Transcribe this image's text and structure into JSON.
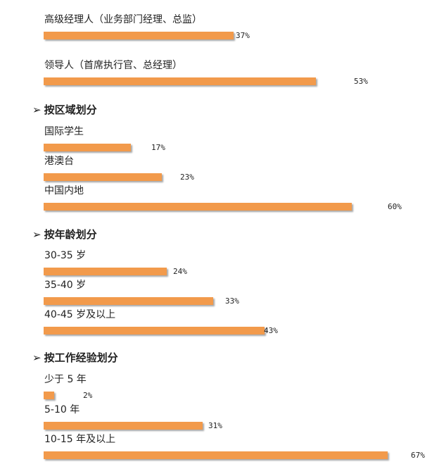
{
  "colors": {
    "bar": "#f29a4b"
  },
  "chart_data": [
    {
      "type": "bar",
      "heading": "",
      "categories": [
        "高级经理人（业务部门经理、总监）",
        "领导人（首席执行官、总经理）"
      ],
      "values": [
        37,
        53
      ],
      "value_labels": [
        "37%",
        "53%"
      ]
    },
    {
      "type": "bar",
      "heading": "按区域划分",
      "categories": [
        "国际学生",
        "港澳台",
        "中国内地"
      ],
      "values": [
        17,
        23,
        60
      ],
      "value_labels": [
        "17%",
        "23%",
        "60%"
      ]
    },
    {
      "type": "bar",
      "heading": "按年龄划分",
      "categories": [
        "30-35 岁",
        "35-40 岁",
        "40-45 岁及以上"
      ],
      "values": [
        24,
        33,
        43
      ],
      "value_labels": [
        "24%",
        "33%",
        "43%"
      ]
    },
    {
      "type": "bar",
      "heading": "按工作经验划分",
      "categories": [
        "少于 5 年",
        "5-10 年",
        "10-15 年及以上"
      ],
      "values": [
        2,
        31,
        67
      ],
      "value_labels": [
        "2%",
        "31%",
        "67%"
      ]
    }
  ]
}
